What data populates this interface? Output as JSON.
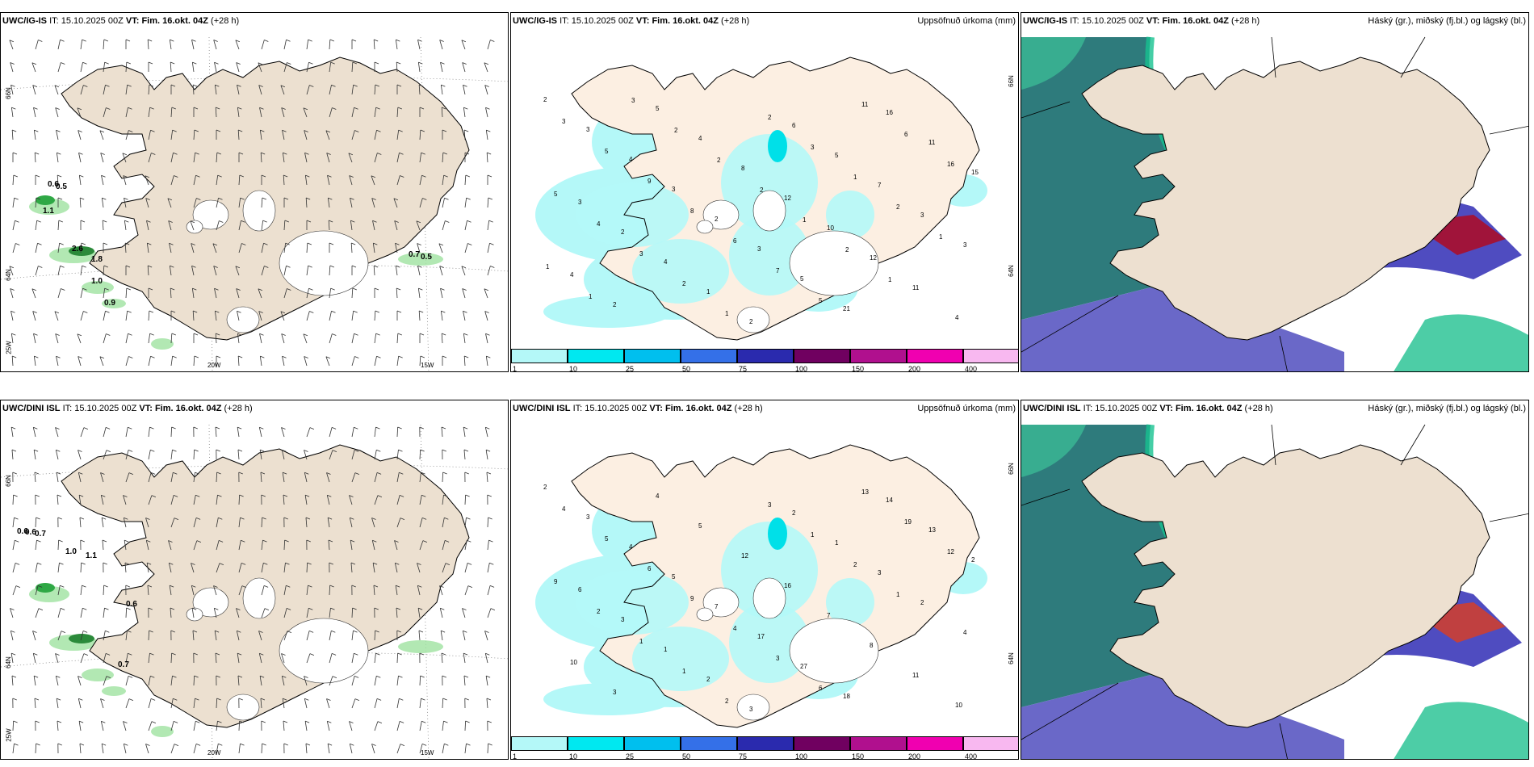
{
  "rows": [
    {
      "model": "UWC/IG-IS",
      "it_label": "IT:",
      "it_value": "15.10.2025 00Z",
      "vt_label": "VT:",
      "vt_value": "Fim. 16.okt. 04Z",
      "lead": "(+28 h)"
    },
    {
      "model": "UWC/DINI ISL",
      "it_label": "IT:",
      "it_value": "15.10.2025 00Z",
      "vt_label": "VT:",
      "vt_value": "Fim. 16.okt. 04Z",
      "lead": "(+28 h)"
    }
  ],
  "precip_title": "Uppsöfnuð úrkoma (mm)",
  "cloud_title": "Háský (gr.), miðský (fj.bl.) og lágský (bl.)",
  "axis": {
    "lon20": "20W",
    "lon15": "15W",
    "lon25": "25W",
    "lat65": "65N",
    "lat64": "64N",
    "lat66": "66N"
  },
  "colorbar": {
    "labels": [
      "1",
      "10",
      "25",
      "50",
      "75",
      "100",
      "150",
      "200",
      "400"
    ],
    "colors": [
      "#b4f8f8",
      "#00e8f0",
      "#00bfee",
      "#3470e8",
      "#2a2aae",
      "#700060",
      "#b0108e",
      "#f000b0",
      "#f8b8f0"
    ]
  },
  "wind_labels_top": [
    "0.6",
    "0.5",
    "1.1",
    "2.6",
    "1.8",
    "1.0",
    "0.9",
    "0.7",
    "0.5"
  ],
  "wind_labels_bottom": [
    "0.6",
    "0.6",
    "0.7",
    "1.0",
    "1.1",
    "0.6",
    "0.7"
  ],
  "precip_numbers_top": [
    "2",
    "3",
    "4",
    "3",
    "2",
    "3",
    "5",
    "21",
    "16",
    "11",
    "15",
    "3",
    "2",
    "4",
    "1",
    "2",
    "6",
    "5",
    "7",
    "3",
    "3",
    "4",
    "2",
    "5",
    "4",
    "8",
    "12",
    "10",
    "12",
    "11",
    "4",
    "3",
    "5",
    "9",
    "8",
    "6",
    "7",
    "5",
    "11",
    "6",
    "16",
    "5",
    "4",
    "3",
    "2",
    "1",
    "2",
    "3",
    "1",
    "2",
    "1",
    "1",
    "1",
    "3",
    "2",
    "2",
    "2",
    "1",
    "2",
    "1"
  ],
  "precip_numbers_bottom": [
    "2",
    "3",
    "4",
    "5",
    "7",
    "17",
    "27",
    "18",
    "14",
    "13",
    "2",
    "6",
    "3",
    "1",
    "2",
    "3",
    "2",
    "1",
    "3",
    "2",
    "4",
    "10",
    "3",
    "4",
    "5",
    "12",
    "16",
    "7",
    "8",
    "11",
    "10",
    "4",
    "5",
    "6",
    "9",
    "4",
    "3",
    "6",
    "13",
    "19",
    "12",
    "9",
    "2",
    "1",
    "1",
    "2",
    "3",
    "1",
    "2",
    "1"
  ]
}
